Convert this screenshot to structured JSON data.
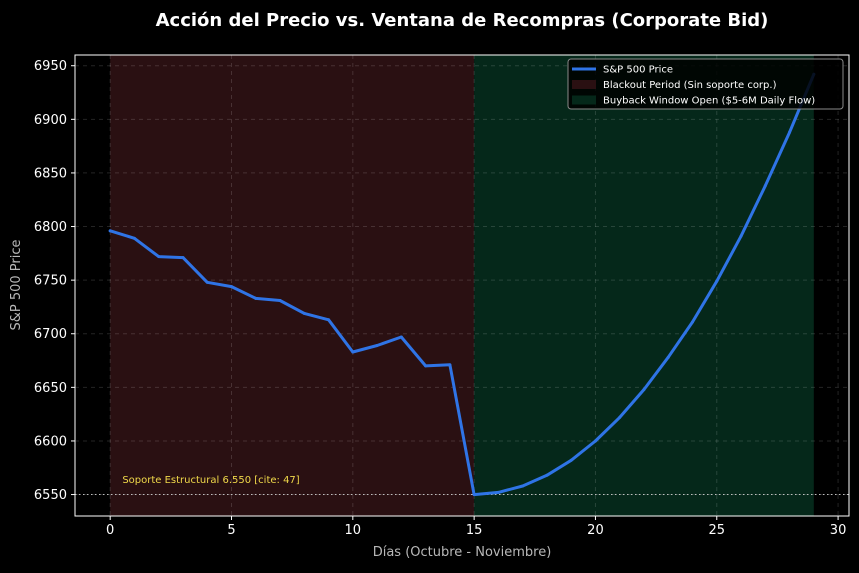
{
  "chart_data": {
    "type": "line",
    "title": "Acción del Precio vs. Ventana de Recompras (Corporate Bid)",
    "xlabel": "Días (Octubre - Noviembre)",
    "ylabel": "S&P 500 Price",
    "xlim": [
      -1.45,
      30.45
    ],
    "ylim": [
      6530,
      6960
    ],
    "xticks": [
      0,
      5,
      10,
      15,
      20,
      25,
      30
    ],
    "yticks": [
      6550,
      6600,
      6650,
      6700,
      6750,
      6800,
      6850,
      6900,
      6950
    ],
    "grid": true,
    "legend_position": "top-right",
    "series": [
      {
        "name": "S&P 500 Price",
        "color": "#2f74e6",
        "x": [
          0,
          1,
          2,
          3,
          4,
          5,
          6,
          7,
          8,
          9,
          10,
          11,
          12,
          13,
          14,
          15,
          16,
          17,
          18,
          19,
          20,
          21,
          22,
          23,
          24,
          25,
          26,
          27,
          28,
          29
        ],
        "values": [
          6796,
          6789,
          6772,
          6771,
          6748,
          6744,
          6733,
          6731,
          6719,
          6713,
          6683,
          6689,
          6697,
          6670,
          6671,
          6550,
          6552,
          6558,
          6568,
          6582,
          6600,
          6622,
          6648,
          6678,
          6711,
          6749,
          6791,
          6838,
          6888,
          6942
        ]
      }
    ],
    "regions": [
      {
        "name": "Blackout Period (Sin soporte corp.)",
        "x_start": 0,
        "x_end": 15,
        "color": "#2a1012"
      },
      {
        "name": "Buyback Window Open ($5-6M Daily Flow)",
        "x_start": 15,
        "x_end": 29,
        "color": "#05281a"
      }
    ],
    "reference_line": {
      "y": 6550,
      "color": "#bfbfbf"
    },
    "annotation": {
      "text": "Soporte Estructural 6.550 [cite: 47]",
      "x": 0.5,
      "y": 6561,
      "color": "#f0d94a"
    },
    "legend": [
      {
        "label": "S&P 500 Price",
        "kind": "line",
        "color": "#2f74e6"
      },
      {
        "label": "Blackout Period (Sin soporte corp.)",
        "kind": "patch",
        "color": "#2a1012"
      },
      {
        "label": "Buyback Window Open ($5-6M Daily Flow)",
        "kind": "patch",
        "color": "#05281a"
      }
    ]
  }
}
